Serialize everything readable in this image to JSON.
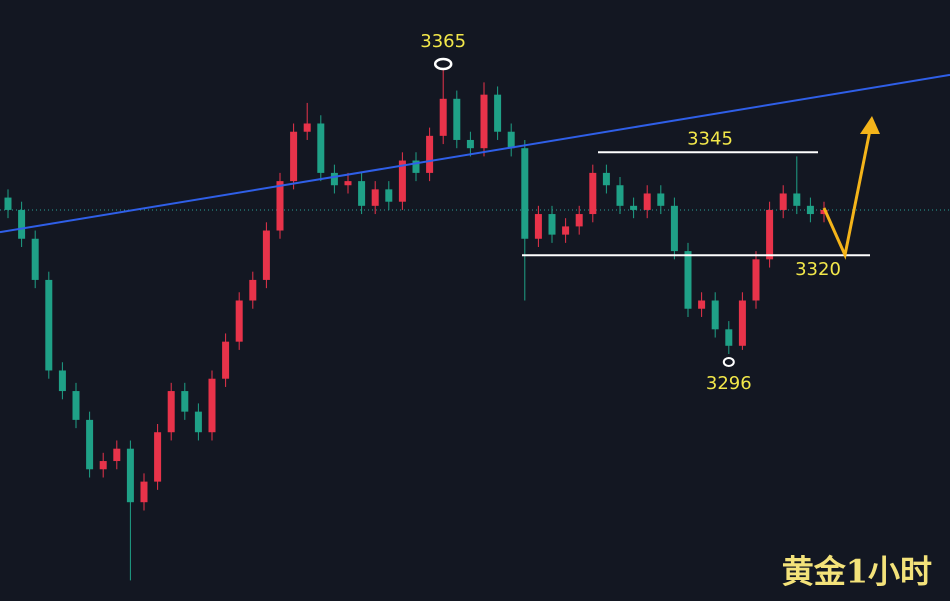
{
  "chart_data": {
    "type": "candlestick",
    "ylim": [
      3236,
      3382
    ],
    "up_color": "#e8334a",
    "down_color": "#1fa187",
    "open": [
      3334,
      3331,
      3324,
      3314,
      3292,
      3287,
      3280,
      3268,
      3270,
      3273,
      3260,
      3265,
      3277,
      3287,
      3282,
      3277,
      3290,
      3299,
      3309,
      3314,
      3326,
      3338,
      3350,
      3352,
      3340,
      3337,
      3338,
      3332,
      3336,
      3333,
      3343,
      3340,
      3349,
      3358,
      3348,
      3346,
      3359,
      3350,
      3346,
      3324,
      3330,
      3325,
      3327,
      3330,
      3340,
      3337,
      3332,
      3331,
      3335,
      3332,
      3321,
      3307,
      3309,
      3302,
      3298,
      3309,
      3319,
      3331,
      3335,
      3332,
      3330
    ],
    "high": [
      3336,
      3333,
      3326,
      3316,
      3294,
      3289,
      3282,
      3272,
      3275,
      3275,
      3267,
      3279,
      3289,
      3289,
      3284,
      3292,
      3301,
      3311,
      3316,
      3328,
      3340,
      3352,
      3357,
      3354,
      3342,
      3340,
      3340,
      3338,
      3338,
      3345,
      3345,
      3351,
      3365,
      3360,
      3350,
      3362,
      3361,
      3352,
      3348,
      3332,
      3332,
      3329,
      3332,
      3342,
      3342,
      3339,
      3334,
      3337,
      3337,
      3334,
      3323,
      3311,
      3311,
      3304,
      3311,
      3321,
      3333,
      3337,
      3344,
      3334,
      3333
    ],
    "low": [
      3329,
      3322,
      3312,
      3290,
      3285,
      3278,
      3266,
      3266,
      3268,
      3241,
      3258,
      3263,
      3275,
      3280,
      3275,
      3275,
      3288,
      3297,
      3307,
      3312,
      3324,
      3336,
      3348,
      3338,
      3335,
      3335,
      3330,
      3330,
      3331,
      3331,
      3338,
      3338,
      3347,
      3346,
      3344,
      3344,
      3348,
      3344,
      3309,
      3322,
      3323,
      3323,
      3325,
      3328,
      3335,
      3330,
      3329,
      3329,
      3330,
      3319,
      3305,
      3305,
      3300,
      3296,
      3297,
      3307,
      3317,
      3329,
      3330,
      3328,
      3328
    ],
    "close": [
      3331,
      3324,
      3314,
      3292,
      3287,
      3280,
      3268,
      3270,
      3273,
      3260,
      3265,
      3277,
      3287,
      3282,
      3277,
      3290,
      3299,
      3309,
      3314,
      3326,
      3338,
      3350,
      3352,
      3340,
      3337,
      3338,
      3332,
      3336,
      3333,
      3343,
      3340,
      3349,
      3358,
      3348,
      3346,
      3359,
      3350,
      3346,
      3324,
      3330,
      3325,
      3327,
      3330,
      3340,
      3337,
      3332,
      3331,
      3335,
      3332,
      3321,
      3307,
      3309,
      3302,
      3298,
      3309,
      3319,
      3331,
      3335,
      3332,
      3330,
      3331
    ],
    "trendline": {
      "color": "#2f5fe8",
      "values": [
        3325.6,
        3363.8
      ]
    },
    "peak": 3365,
    "resistance": 3345,
    "support": 3320,
    "trough": 3296,
    "watermark": "黄金1小时"
  }
}
